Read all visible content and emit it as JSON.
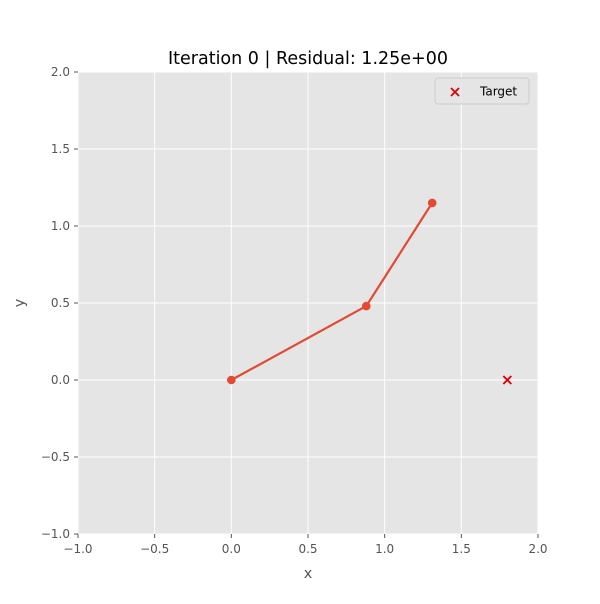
{
  "chart_data": {
    "type": "line",
    "title": "Iteration 0 | Residual: 1.25e+00",
    "xlabel": "x",
    "ylabel": "y",
    "xlim": [
      -1.0,
      2.0
    ],
    "ylim": [
      -1.0,
      2.0
    ],
    "grid": true,
    "style": "ggplot",
    "x_ticks": [
      -1.0,
      -0.5,
      0.0,
      0.5,
      1.0,
      1.5,
      2.0
    ],
    "x_tick_labels": [
      "−1.0",
      "−0.5",
      "0.0",
      "0.5",
      "1.0",
      "1.5",
      "2.0"
    ],
    "y_ticks": [
      -1.0,
      -0.5,
      0.0,
      0.5,
      1.0,
      1.5,
      2.0
    ],
    "y_tick_labels": [
      "−1.0",
      "−0.5",
      "0.0",
      "0.5",
      "1.0",
      "1.5",
      "2.0"
    ],
    "series": [
      {
        "kind": "line-markers",
        "color": "#e24a33",
        "points": [
          {
            "x": 0.0,
            "y": 0.0
          },
          {
            "x": 0.88,
            "y": 0.48
          },
          {
            "x": 1.31,
            "y": 1.15
          }
        ]
      },
      {
        "kind": "scatter-x",
        "name": "Target",
        "color": "#dd0000",
        "points": [
          {
            "x": 1.8,
            "y": 0.0
          }
        ]
      }
    ],
    "legend": {
      "position": "upper-right",
      "entries": [
        "Target"
      ]
    },
    "colors": {
      "axes_bg": "#e5e5e5",
      "grid": "#ffffff",
      "tick": "#555555"
    }
  }
}
